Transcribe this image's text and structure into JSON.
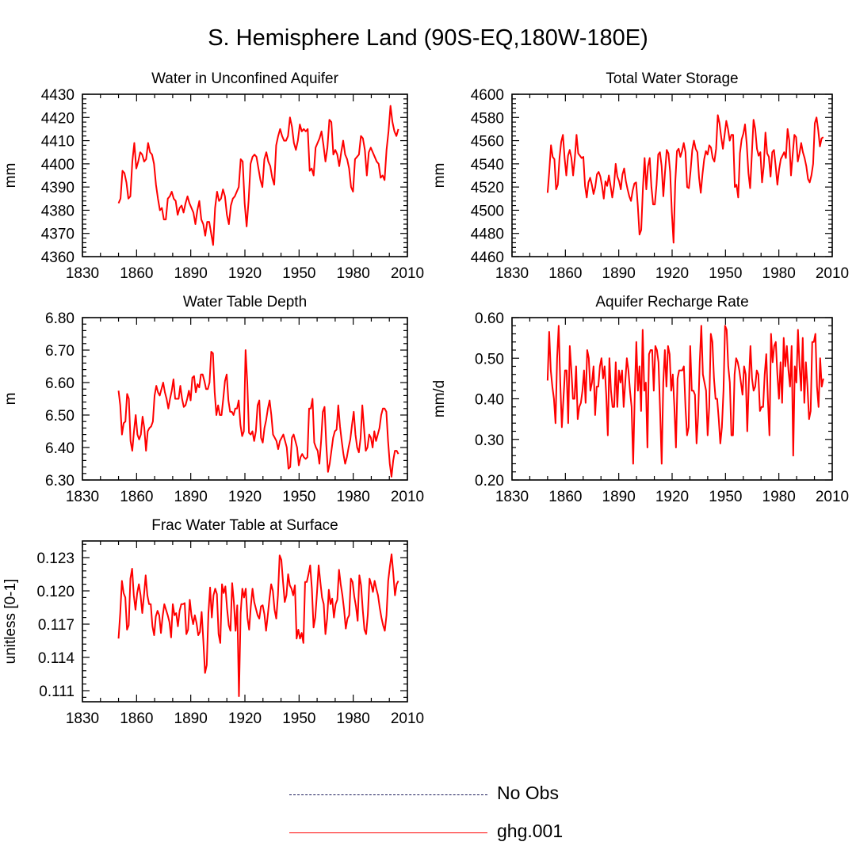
{
  "figure_title": "S. Hemisphere Land (90S-EQ,180W-180E)",
  "line_color": "#ff0000",
  "legend": [
    {
      "label": "No Obs",
      "style": "dashed",
      "color": "#1a1a5a"
    },
    {
      "label": "ghg.001",
      "style": "solid",
      "color": "#ff0000"
    }
  ],
  "chart_data": [
    {
      "type": "line",
      "title": "Water in Unconfined Aquifer",
      "xlabel": "",
      "ylabel": "mm",
      "xlim": [
        1830,
        2010
      ],
      "ylim": [
        4360,
        4430
      ],
      "xticks": [
        1830,
        1860,
        1890,
        1920,
        1950,
        1980,
        2010
      ],
      "yticks": [
        4360,
        4370,
        4380,
        4390,
        4400,
        4410,
        4420,
        4430
      ],
      "ytick_labels": [
        "4360",
        "4370",
        "4380",
        "4390",
        "4400",
        "4410",
        "4420",
        "4430"
      ],
      "x_start": 1850,
      "series": [
        {
          "name": "ghg.001",
          "values": [
            4383,
            4385,
            4397,
            4396,
            4392,
            4385,
            4386,
            4401,
            4409,
            4398,
            4401,
            4405,
            4404,
            4401,
            4402,
            4409,
            4405,
            4404,
            4400,
            4391,
            4385,
            4380,
            4381,
            4376,
            4376,
            4385,
            4386,
            4388,
            4385,
            4384,
            4378,
            4381,
            4382,
            4379,
            4383,
            4386,
            4383,
            4381,
            4379,
            4374,
            4380,
            4384,
            4376,
            4374,
            4369,
            4375,
            4375,
            4370,
            4365,
            4381,
            4388,
            4384,
            4385,
            4389,
            4386,
            4378,
            4374,
            4382,
            4385,
            4386,
            4388,
            4390,
            4402,
            4401,
            4383,
            4373,
            4384,
            4400,
            4403,
            4404,
            4403,
            4398,
            4393,
            4390,
            4402,
            4405,
            4401,
            4399,
            4394,
            4391,
            4408,
            4412,
            4415,
            4412,
            4410,
            4410,
            4412,
            4420,
            4416,
            4409,
            4406,
            4410,
            4417,
            4414,
            4415,
            4414,
            4415,
            4397,
            4398,
            4395,
            4407,
            4409,
            4411,
            4414,
            4408,
            4401,
            4407,
            4419,
            4418,
            4404,
            4406,
            4404,
            4399,
            4405,
            4410,
            4404,
            4402,
            4398,
            4390,
            4388,
            4402,
            4403,
            4404,
            4412,
            4411,
            4406,
            4395,
            4405,
            4407,
            4405,
            4403,
            4401,
            4400,
            4394,
            4395,
            4393,
            4406,
            4414,
            4425,
            4418,
            4414,
            4412,
            4415
          ]
        }
      ]
    },
    {
      "type": "line",
      "title": "Total Water Storage",
      "xlabel": "",
      "ylabel": "mm",
      "xlim": [
        1830,
        2010
      ],
      "ylim": [
        4460,
        4600
      ],
      "xticks": [
        1830,
        1860,
        1890,
        1920,
        1950,
        1980,
        2010
      ],
      "yticks": [
        4460,
        4480,
        4500,
        4520,
        4540,
        4560,
        4580,
        4600
      ],
      "ytick_labels": [
        "4460",
        "4480",
        "4500",
        "4520",
        "4540",
        "4560",
        "4580",
        "4600"
      ],
      "x_start": 1850,
      "series": [
        {
          "name": "ghg.001",
          "values": [
            4515,
            4534,
            4556,
            4546,
            4544,
            4518,
            4522,
            4545,
            4559,
            4565,
            4545,
            4530,
            4547,
            4552,
            4545,
            4530,
            4545,
            4565,
            4549,
            4547,
            4545,
            4546,
            4521,
            4511,
            4524,
            4528,
            4522,
            4514,
            4520,
            4531,
            4533,
            4529,
            4521,
            4510,
            4525,
            4521,
            4530,
            4521,
            4511,
            4521,
            4540,
            4529,
            4525,
            4518,
            4531,
            4536,
            4525,
            4518,
            4512,
            4508,
            4517,
            4523,
            4524,
            4504,
            4479,
            4483,
            4519,
            4545,
            4518,
            4538,
            4545,
            4520,
            4505,
            4505,
            4522,
            4548,
            4550,
            4538,
            4512,
            4533,
            4552,
            4549,
            4533,
            4498,
            4472,
            4524,
            4551,
            4553,
            4546,
            4551,
            4558,
            4550,
            4520,
            4519,
            4534,
            4552,
            4560,
            4553,
            4550,
            4528,
            4515,
            4531,
            4544,
            4551,
            4548,
            4556,
            4554,
            4545,
            4542,
            4553,
            4582,
            4575,
            4563,
            4553,
            4565,
            4577,
            4570,
            4560,
            4565,
            4565,
            4520,
            4522,
            4511,
            4549,
            4561,
            4566,
            4574,
            4557,
            4532,
            4519,
            4548,
            4578,
            4570,
            4553,
            4547,
            4550,
            4524,
            4538,
            4567,
            4549,
            4546,
            4529,
            4550,
            4552,
            4538,
            4522,
            4535,
            4544,
            4547,
            4550,
            4545,
            4570,
            4560,
            4530,
            4548,
            4565,
            4563,
            4542,
            4549,
            4558,
            4550,
            4545,
            4538,
            4527,
            4524,
            4530,
            4540,
            4575,
            4580,
            4569,
            4555,
            4562,
            4563
          ]
        }
      ]
    },
    {
      "type": "line",
      "title": "Water Table Depth",
      "xlabel": "",
      "ylabel": "m",
      "xlim": [
        1830,
        2010
      ],
      "ylim": [
        6.3,
        6.8
      ],
      "xticks": [
        1830,
        1860,
        1890,
        1920,
        1950,
        1980,
        2010
      ],
      "yticks": [
        6.3,
        6.4,
        6.5,
        6.6,
        6.7,
        6.8
      ],
      "ytick_labels": [
        "6.30",
        "6.40",
        "6.50",
        "6.60",
        "6.70",
        "6.80"
      ],
      "x_start": 1850,
      "series": [
        {
          "name": "ghg.001",
          "values": [
            6.575,
            6.53,
            6.44,
            6.475,
            6.48,
            6.565,
            6.55,
            6.42,
            6.39,
            6.45,
            6.5,
            6.44,
            6.425,
            6.44,
            6.495,
            6.46,
            6.39,
            6.45,
            6.46,
            6.465,
            6.48,
            6.56,
            6.59,
            6.57,
            6.56,
            6.58,
            6.6,
            6.57,
            6.55,
            6.52,
            6.55,
            6.575,
            6.61,
            6.55,
            6.55,
            6.55,
            6.59,
            6.55,
            6.525,
            6.53,
            6.55,
            6.575,
            6.545,
            6.615,
            6.62,
            6.57,
            6.595,
            6.585,
            6.625,
            6.625,
            6.605,
            6.58,
            6.58,
            6.6,
            6.695,
            6.69,
            6.57,
            6.5,
            6.53,
            6.5,
            6.5,
            6.55,
            6.605,
            6.625,
            6.545,
            6.51,
            6.51,
            6.5,
            6.52,
            6.52,
            6.545,
            6.47,
            6.435,
            6.45,
            6.7,
            6.6,
            6.445,
            6.44,
            6.45,
            6.42,
            6.45,
            6.53,
            6.545,
            6.43,
            6.415,
            6.46,
            6.485,
            6.52,
            6.545,
            6.5,
            6.44,
            6.43,
            6.42,
            6.395,
            6.42,
            6.43,
            6.44,
            6.42,
            6.4,
            6.335,
            6.34,
            6.43,
            6.44,
            6.42,
            6.4,
            6.345,
            6.37,
            6.38,
            6.37,
            6.365,
            6.37,
            6.52,
            6.52,
            6.55,
            6.415,
            6.4,
            6.39,
            6.35,
            6.42,
            6.51,
            6.525,
            6.41,
            6.325,
            6.35,
            6.39,
            6.43,
            6.45,
            6.455,
            6.53,
            6.465,
            6.42,
            6.38,
            6.35,
            6.37,
            6.4,
            6.425,
            6.47,
            6.51,
            6.44,
            6.4,
            6.385,
            6.43,
            6.53,
            6.46,
            6.39,
            6.4,
            6.44,
            6.43,
            6.4,
            6.45,
            6.42,
            6.44,
            6.46,
            6.5,
            6.52,
            6.52,
            6.51,
            6.42,
            6.35,
            6.31,
            6.36,
            6.39,
            6.39,
            6.38
          ]
        }
      ]
    },
    {
      "type": "line",
      "title": "Aquifer Recharge Rate",
      "xlabel": "",
      "ylabel": "mm/d",
      "xlim": [
        1830,
        2010
      ],
      "ylim": [
        0.2,
        0.6
      ],
      "xticks": [
        1830,
        1860,
        1890,
        1920,
        1950,
        1980,
        2010
      ],
      "yticks": [
        0.2,
        0.3,
        0.4,
        0.5,
        0.6
      ],
      "ytick_labels": [
        "0.20",
        "0.30",
        "0.40",
        "0.50",
        "0.60"
      ],
      "x_start": 1850,
      "series": [
        {
          "name": "ghg.001",
          "values": [
            0.445,
            0.565,
            0.47,
            0.43,
            0.4,
            0.34,
            0.5,
            0.58,
            0.44,
            0.33,
            0.4,
            0.47,
            0.47,
            0.34,
            0.53,
            0.47,
            0.4,
            0.4,
            0.48,
            0.35,
            0.38,
            0.39,
            0.42,
            0.47,
            0.39,
            0.52,
            0.5,
            0.42,
            0.44,
            0.48,
            0.36,
            0.43,
            0.43,
            0.48,
            0.5,
            0.45,
            0.48,
            0.41,
            0.31,
            0.5,
            0.42,
            0.38,
            0.38,
            0.49,
            0.38,
            0.47,
            0.44,
            0.47,
            0.38,
            0.44,
            0.5,
            0.47,
            0.42,
            0.38,
            0.24,
            0.41,
            0.54,
            0.42,
            0.48,
            0.37,
            0.57,
            0.42,
            0.44,
            0.28,
            0.51,
            0.52,
            0.52,
            0.42,
            0.53,
            0.52,
            0.49,
            0.37,
            0.24,
            0.44,
            0.52,
            0.43,
            0.53,
            0.51,
            0.42,
            0.46,
            0.38,
            0.28,
            0.45,
            0.47,
            0.47,
            0.47,
            0.48,
            0.38,
            0.31,
            0.33,
            0.53,
            0.42,
            0.42,
            0.41,
            0.29,
            0.36,
            0.49,
            0.58,
            0.46,
            0.44,
            0.42,
            0.31,
            0.38,
            0.56,
            0.54,
            0.45,
            0.4,
            0.4,
            0.35,
            0.29,
            0.33,
            0.42,
            0.58,
            0.57,
            0.48,
            0.44,
            0.31,
            0.31,
            0.46,
            0.5,
            0.49,
            0.47,
            0.44,
            0.41,
            0.48,
            0.46,
            0.32,
            0.44,
            0.53,
            0.45,
            0.42,
            0.43,
            0.47,
            0.46,
            0.37,
            0.38,
            0.38,
            0.46,
            0.51,
            0.4,
            0.31,
            0.56,
            0.49,
            0.53,
            0.54,
            0.46,
            0.4,
            0.49,
            0.39,
            0.55,
            0.48,
            0.53,
            0.47,
            0.43,
            0.53,
            0.26,
            0.48,
            0.44,
            0.57,
            0.48,
            0.42,
            0.55,
            0.39,
            0.49,
            0.43,
            0.35,
            0.37,
            0.54,
            0.54,
            0.56,
            0.43,
            0.38,
            0.5,
            0.43,
            0.45
          ]
        }
      ]
    },
    {
      "type": "line",
      "title": "Frac Water Table at Surface",
      "xlabel": "",
      "ylabel": "unitless [0-1]",
      "xlim": [
        1830,
        2010
      ],
      "ylim": [
        0.11,
        0.1245
      ],
      "xticks": [
        1830,
        1860,
        1890,
        1920,
        1950,
        1980,
        2010
      ],
      "yticks": [
        0.111,
        0.114,
        0.117,
        0.12,
        0.123
      ],
      "ytick_labels": [
        "0.111",
        "0.114",
        "0.117",
        "0.120",
        "0.123"
      ],
      "x_start": 1850,
      "series": [
        {
          "name": "ghg.001",
          "values": [
            0.1157,
            0.118,
            0.1209,
            0.1198,
            0.1194,
            0.1165,
            0.1169,
            0.1211,
            0.122,
            0.1196,
            0.1183,
            0.1198,
            0.1206,
            0.1196,
            0.118,
            0.1196,
            0.1214,
            0.1196,
            0.1188,
            0.1188,
            0.1168,
            0.116,
            0.1177,
            0.1182,
            0.1178,
            0.1162,
            0.1177,
            0.1188,
            0.1183,
            0.1178,
            0.1172,
            0.1158,
            0.1188,
            0.1178,
            0.118,
            0.1168,
            0.1182,
            0.1188,
            0.1188,
            0.1189,
            0.1161,
            0.1165,
            0.1192,
            0.1178,
            0.117,
            0.1178,
            0.1171,
            0.116,
            0.1163,
            0.1181,
            0.1155,
            0.1126,
            0.1133,
            0.118,
            0.1203,
            0.1176,
            0.1196,
            0.1202,
            0.1197,
            0.1161,
            0.1153,
            0.1206,
            0.1198,
            0.1204,
            0.1184,
            0.1169,
            0.1164,
            0.1207,
            0.119,
            0.1164,
            0.1187,
            0.1105,
            0.118,
            0.1202,
            0.1194,
            0.1202,
            0.1176,
            0.1165,
            0.1186,
            0.1202,
            0.119,
            0.1184,
            0.1178,
            0.1175,
            0.1186,
            0.1187,
            0.1179,
            0.1164,
            0.1178,
            0.1193,
            0.1206,
            0.12,
            0.1183,
            0.1175,
            0.1196,
            0.1232,
            0.1228,
            0.1208,
            0.119,
            0.1196,
            0.1215,
            0.1205,
            0.1202,
            0.1196,
            0.1205,
            0.1157,
            0.1165,
            0.1157,
            0.1162,
            0.1153,
            0.1208,
            0.1208,
            0.1215,
            0.1223,
            0.1202,
            0.1167,
            0.1176,
            0.1198,
            0.1223,
            0.1208,
            0.1194,
            0.1188,
            0.1161,
            0.1175,
            0.1201,
            0.1188,
            0.1193,
            0.1176,
            0.1188,
            0.1192,
            0.1219,
            0.1206,
            0.1196,
            0.1183,
            0.1166,
            0.1175,
            0.1178,
            0.1211,
            0.1208,
            0.1195,
            0.1186,
            0.1173,
            0.1214,
            0.1205,
            0.1183,
            0.1165,
            0.1161,
            0.1179,
            0.1211,
            0.1206,
            0.1199,
            0.1209,
            0.1202,
            0.1196,
            0.1185,
            0.1176,
            0.1169,
            0.1164,
            0.1178,
            0.1209,
            0.1222,
            0.1233,
            0.1216,
            0.1196,
            0.1206,
            0.1209
          ]
        }
      ]
    }
  ]
}
